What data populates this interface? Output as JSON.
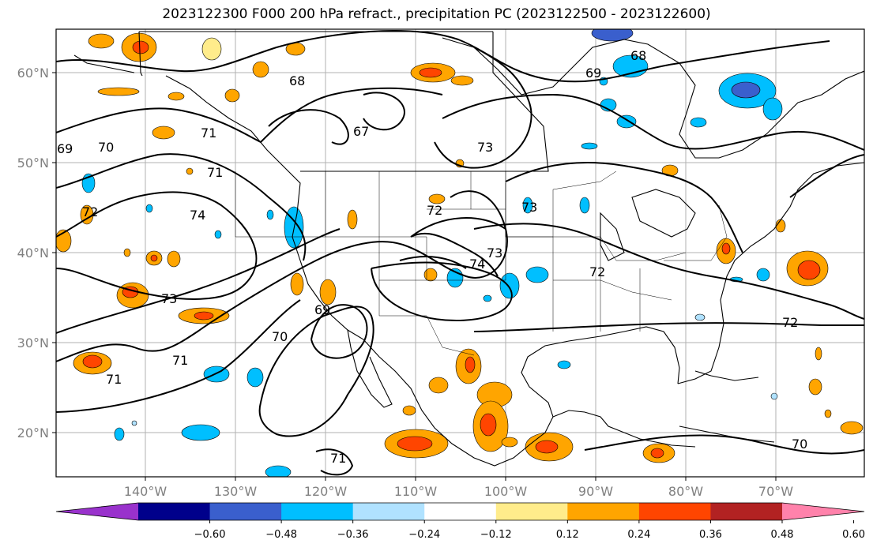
{
  "title": "2023122300 F000 200 hPa refract., precipitation PC (2023122500 - 2023122600)",
  "map": {
    "lon_ticks": [
      "140°W",
      "130°W",
      "120°W",
      "110°W",
      "100°W",
      "90°W",
      "80°W",
      "70°W"
    ],
    "lat_ticks": [
      "60°N",
      "50°N",
      "40°N",
      "30°N",
      "20°N"
    ],
    "contour_labels": [
      "68",
      "69",
      "68",
      "67",
      "71",
      "73",
      "69",
      "71",
      "72",
      "74",
      "73",
      "72",
      "74",
      "73",
      "72",
      "73",
      "69",
      "70",
      "71",
      "71",
      "72",
      "70",
      "71",
      "70"
    ]
  },
  "colorbar": {
    "colors": [
      "#9932cc",
      "#00008b",
      "#3a5fcd",
      "#00bfff",
      "#b0e2ff",
      "#ffffff",
      "#ffec8b",
      "#ffa500",
      "#ff4500",
      "#b22222",
      "#ff82ab"
    ],
    "tick_labels": [
      "−0.60",
      "−0.48",
      "−0.36",
      "−0.24",
      "−0.12",
      "0.12",
      "0.24",
      "0.36",
      "0.48",
      "0.60"
    ]
  }
}
